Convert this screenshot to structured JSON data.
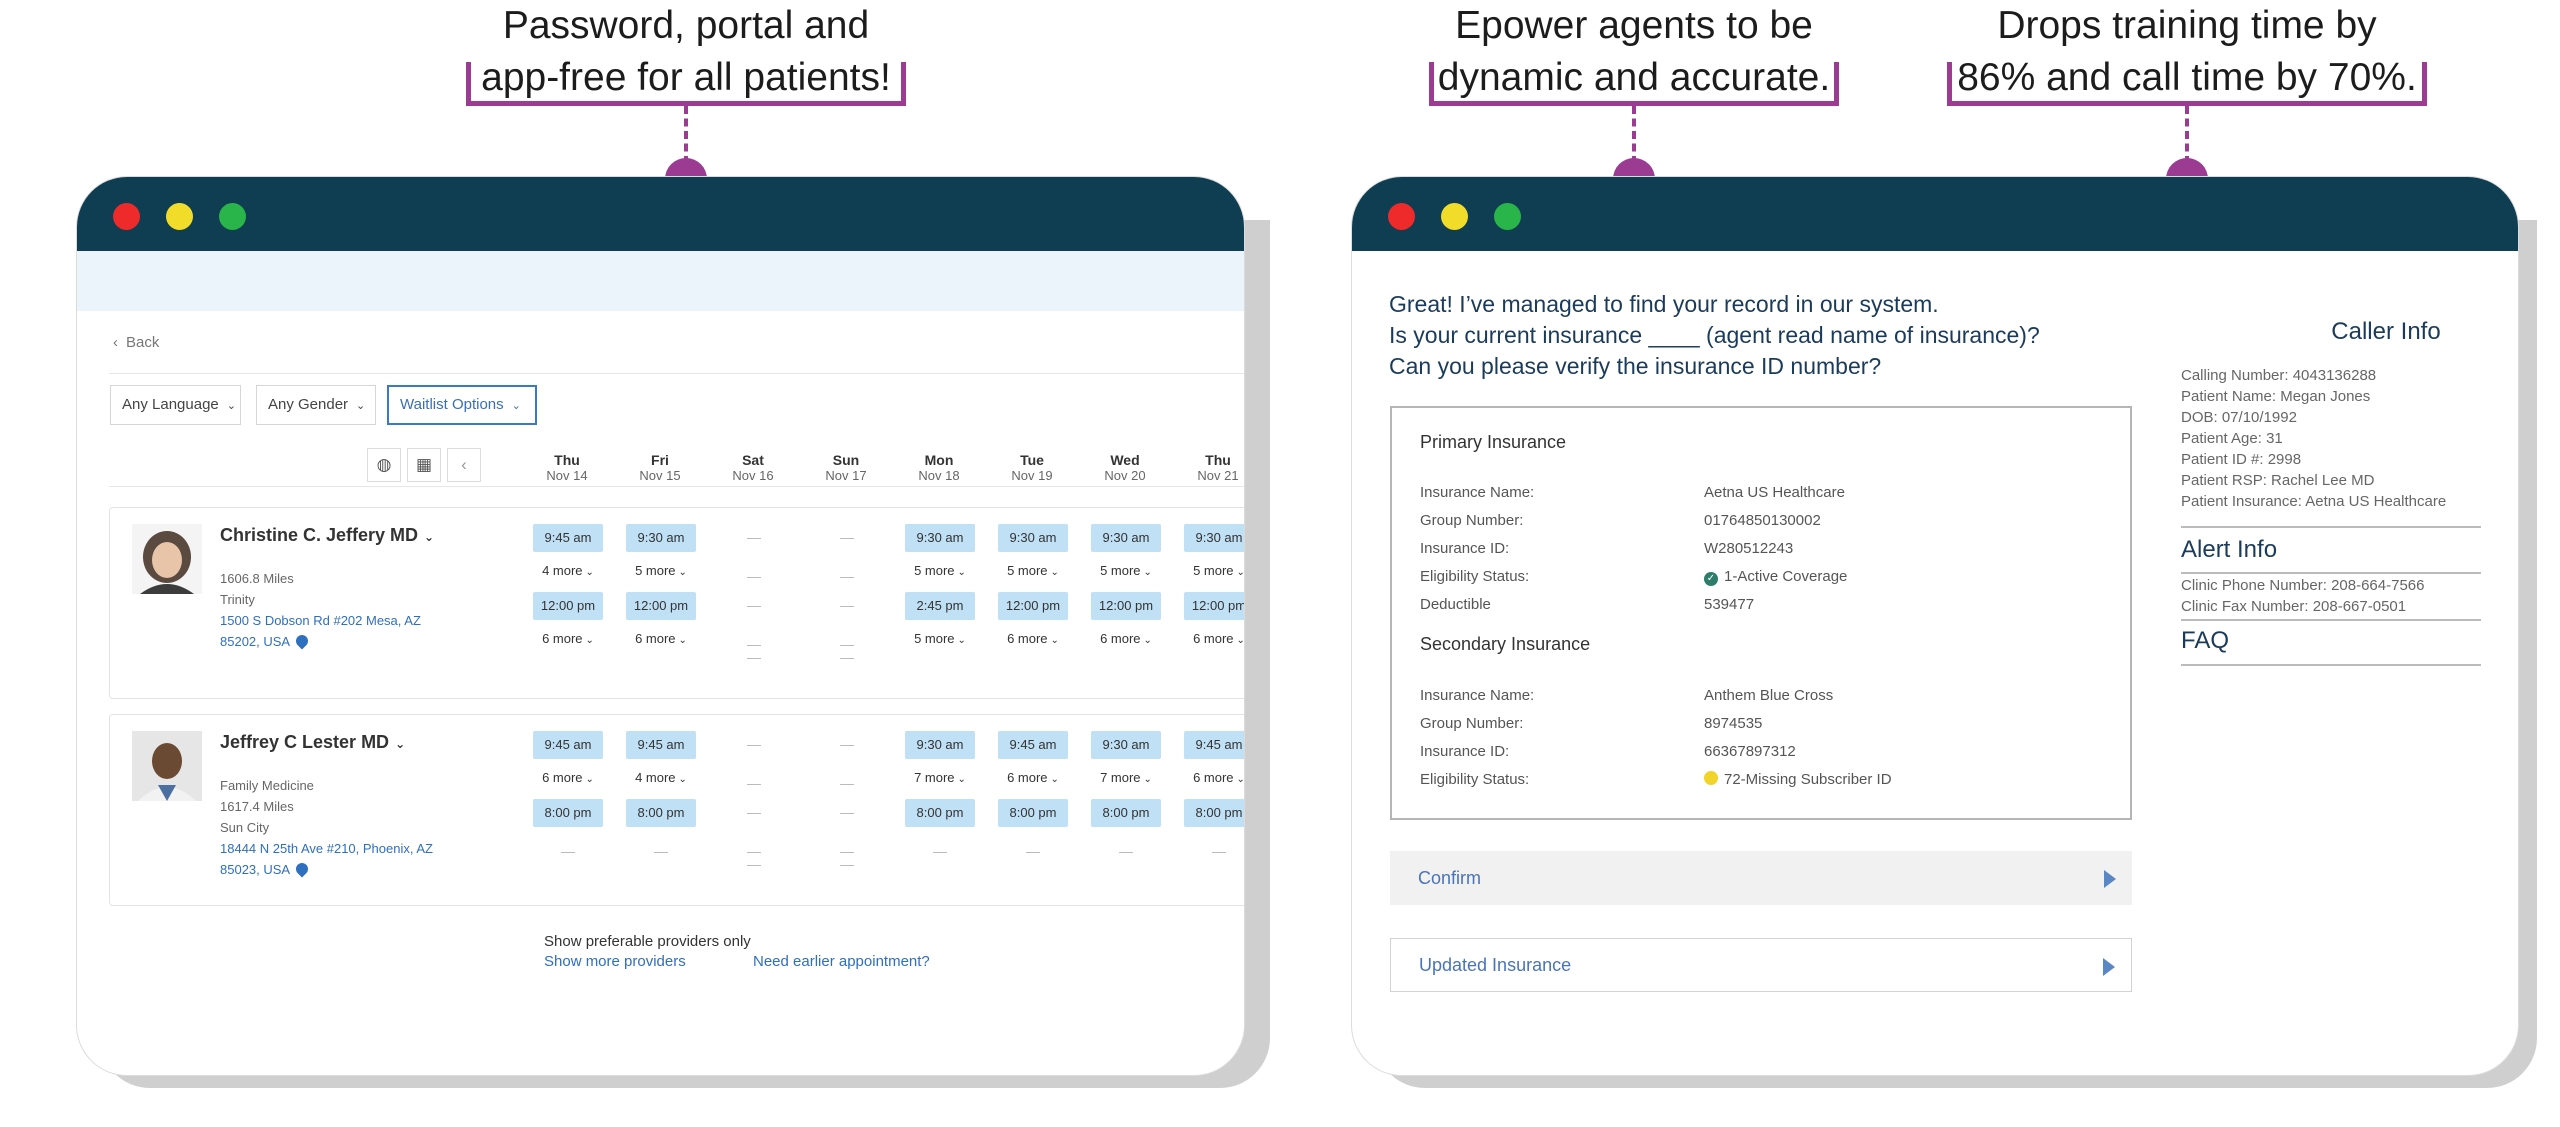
{
  "callouts": [
    {
      "line1": "Password, portal and",
      "line2": "app-free for all patients!"
    },
    {
      "line1": "Epower agents to be",
      "line2": "dynamic and accurate."
    },
    {
      "line1": "Drops training time by",
      "line2": "86% and call time by 70%."
    }
  ],
  "scheduler": {
    "back_label": "Back",
    "filters": {
      "language": "Any Language",
      "gender": "Any Gender",
      "waitlist": "Waitlist Options"
    },
    "days": [
      {
        "name": "Thu",
        "date": "Nov 14"
      },
      {
        "name": "Fri",
        "date": "Nov 15"
      },
      {
        "name": "Sat",
        "date": "Nov 16"
      },
      {
        "name": "Sun",
        "date": "Nov 17"
      },
      {
        "name": "Mon",
        "date": "Nov 18"
      },
      {
        "name": "Tue",
        "date": "Nov 19"
      },
      {
        "name": "Wed",
        "date": "Nov 20"
      },
      {
        "name": "Thu",
        "date": "Nov 21"
      }
    ],
    "providers": [
      {
        "name": "Christine C. Jeffery MD",
        "distance": "1606.8 Miles",
        "location": "Trinity",
        "address1": "1500 S Dobson Rd #202 Mesa, AZ",
        "address2": "85202, USA",
        "slot1": [
          "9:45 am",
          "9:30 am",
          "",
          "",
          "9:30 am",
          "9:30 am",
          "9:30 am",
          "9:30 am"
        ],
        "more1": [
          "4 more",
          "5 more",
          "",
          "",
          "5 more",
          "5 more",
          "5 more",
          "5 more"
        ],
        "slot2": [
          "12:00 pm",
          "12:00 pm",
          "",
          "",
          "2:45 pm",
          "12:00 pm",
          "12:00 pm",
          "12:00 pm"
        ],
        "more2": [
          "6 more",
          "6 more",
          "",
          "",
          "5 more",
          "6 more",
          "6 more",
          "6 more"
        ]
      },
      {
        "name": "Jeffrey C Lester MD",
        "specialty": "Family Medicine",
        "distance": "1617.4 Miles",
        "location": "Sun City",
        "address1": "18444 N 25th Ave #210, Phoenix, AZ",
        "address2": "85023, USA",
        "slot1": [
          "9:45 am",
          "9:45 am",
          "",
          "",
          "9:30 am",
          "9:45 am",
          "9:30 am",
          "9:45 am"
        ],
        "more1": [
          "6 more",
          "4 more",
          "",
          "",
          "7 more",
          "6 more",
          "7 more",
          "6 more"
        ],
        "slot2": [
          "8:00 pm",
          "8:00 pm",
          "",
          "",
          "8:00 pm",
          "8:00 pm",
          "8:00 pm",
          "8:00 pm"
        ],
        "more2": [
          "",
          "",
          "",
          "",
          "",
          "",
          "",
          ""
        ]
      }
    ],
    "footer": {
      "preferable": "Show preferable providers only",
      "more_providers": "Show more providers",
      "earlier": "Need earlier appointment?"
    }
  },
  "agent": {
    "greeting": [
      "Great! I’ve managed to find your record in our system.",
      "Is your current insurance ____ (agent read name of insurance)?",
      "Can you please verify the insurance ID number?"
    ],
    "primary": {
      "title": "Primary Insurance",
      "rows": [
        {
          "k": "Insurance Name:",
          "v": "Aetna US Healthcare"
        },
        {
          "k": "Group Number:",
          "v": "01764850130002"
        },
        {
          "k": "Insurance ID:",
          "v": "W280512243"
        },
        {
          "k": "Eligibility Status:",
          "v": "1-Active Coverage"
        },
        {
          "k": "Deductible",
          "v": "539477"
        }
      ]
    },
    "secondary": {
      "title": "Secondary Insurance",
      "rows": [
        {
          "k": "Insurance Name:",
          "v": "Anthem Blue Cross"
        },
        {
          "k": "Group Number:",
          "v": "8974535"
        },
        {
          "k": "Insurance ID:",
          "v": "66367897312"
        },
        {
          "k": "Eligibility Status:",
          "v": "72-Missing Subscriber ID"
        }
      ]
    },
    "confirm_label": "Confirm",
    "updated_label": "Updated Insurance",
    "caller_info": {
      "title": "Caller Info",
      "lines": [
        "Calling Number: 4043136288",
        "Patient Name: Megan Jones",
        "DOB: 07/10/1992",
        "Patient Age: 31",
        "Patient ID #: 2998",
        "Patient RSP: Rachel Lee  MD",
        "Patient Insurance: Aetna US Healthcare"
      ]
    },
    "alert_info": {
      "title": "Alert Info",
      "lines": [
        "Clinic Phone Number: 208-664-7566",
        "Clinic Fax Number: 208-667-0501"
      ]
    },
    "faq_label": "FAQ"
  },
  "colors": {
    "titlebar": "#0f3e52",
    "accent": "#9b3c92",
    "slot": "#bfe0f5",
    "link": "#2f6fbf"
  }
}
